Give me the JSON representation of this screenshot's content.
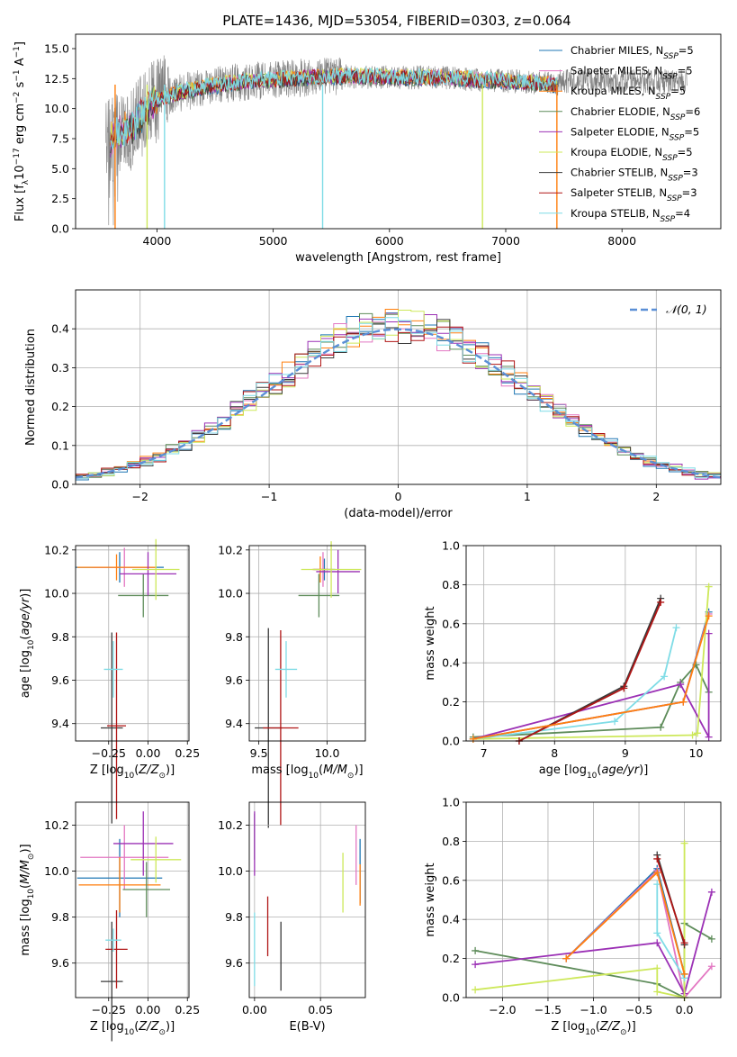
{
  "figure": {
    "title": "PLATE=1436, MJD=53054, FIBERID=0303, z=0.064"
  },
  "chart_data": [
    {
      "id": "spectrum",
      "type": "line",
      "xlabel": "wavelength [Angstrom, rest frame]",
      "ylabel": "Flux [f_λ 10^-17 erg cm^-2 s^-1 A^-1]",
      "xlim": [
        3300,
        8850
      ],
      "ylim": [
        0,
        16.2
      ],
      "xticks": [
        4000,
        5000,
        6000,
        7000,
        8000
      ],
      "yticks": [
        0.0,
        2.5,
        5.0,
        7.5,
        10.0,
        12.5,
        15.0
      ],
      "legend": {
        "placement": "top-right",
        "entries": [
          {
            "name": "Chabrier MILES, N_SSP=5",
            "color": "#1f77b4"
          },
          {
            "name": "Salpeter MILES, N_SSP=5",
            "color": "#e377c2"
          },
          {
            "name": "Kroupa MILES, N_SSP=5",
            "color": "#ff7f0e"
          },
          {
            "name": "Chabrier ELODIE, N_SSP=6",
            "color": "#5e8c5a"
          },
          {
            "name": "Salpeter ELODIE, N_SSP=5",
            "color": "#9b30b5"
          },
          {
            "name": "Kroupa ELODIE, N_SSP=5",
            "color": "#cde85a"
          },
          {
            "name": "Chabrier STELIB, N_SSP=3",
            "color": "#3a3a3a"
          },
          {
            "name": "Salpeter STELIB, N_SSP=3",
            "color": "#b01515"
          },
          {
            "name": "Kroupa STELIB, N_SSP=4",
            "color": "#7fdce6"
          }
        ]
      },
      "data_color": "#808080",
      "model_shape": [
        [
          3600,
          7.4
        ],
        [
          3800,
          8.5
        ],
        [
          3950,
          10.5
        ],
        [
          4150,
          11.2
        ],
        [
          4400,
          11.8
        ],
        [
          4700,
          12.2
        ],
        [
          5000,
          12.4
        ],
        [
          5300,
          12.6
        ],
        [
          5600,
          12.7
        ],
        [
          6000,
          12.6
        ],
        [
          6400,
          12.6
        ],
        [
          6800,
          12.4
        ],
        [
          7200,
          12.2
        ],
        [
          7450,
          12.0
        ]
      ],
      "notes_visible": []
    },
    {
      "id": "residuals",
      "type": "line",
      "xlabel": "(data-model)/error",
      "ylabel": "Normed distribution",
      "xlim": [
        -2.5,
        2.5
      ],
      "ylim": [
        0,
        0.5
      ],
      "xticks": [
        -2,
        -1,
        0,
        1,
        2
      ],
      "yticks": [
        0.0,
        0.1,
        0.2,
        0.3,
        0.4
      ],
      "reference_label": "N(0,1)",
      "reference_color": "#5b8fd6",
      "bin_width": 0.1,
      "legend_placement": "top-right"
    },
    {
      "id": "age-vs-Z",
      "type": "scatter",
      "xlabel": "Z [log10(Z/Z_sun)]",
      "ylabel": "age [log10(age/yr)]",
      "xlim": [
        -0.46,
        0.26
      ],
      "ylim": [
        9.32,
        10.22
      ],
      "xticks": [
        -0.25,
        0.0,
        0.25
      ],
      "yticks": [
        9.4,
        9.6,
        9.8,
        10.0,
        10.2
      ],
      "points": [
        {
          "x": -0.18,
          "y": 10.12,
          "xerr": 0.28,
          "yerr": 0.07,
          "color": "#1f77b4"
        },
        {
          "x": -0.15,
          "y": 10.12,
          "xerr": 0.2,
          "yerr": 0.09,
          "color": "#e377c2"
        },
        {
          "x": -0.2,
          "y": 10.12,
          "xerr": 0.25,
          "yerr": 0.06,
          "color": "#ff7f0e"
        },
        {
          "x": -0.03,
          "y": 9.99,
          "xerr": 0.16,
          "yerr": 0.1,
          "color": "#5e8c5a"
        },
        {
          "x": 0.0,
          "y": 10.09,
          "xerr": 0.18,
          "yerr": 0.1,
          "color": "#9b30b5"
        },
        {
          "x": 0.05,
          "y": 10.11,
          "xerr": 0.15,
          "yerr": 0.14,
          "color": "#cde85a"
        },
        {
          "x": -0.23,
          "y": 9.38,
          "xerr": 0.07,
          "yerr": 0.44,
          "color": "#3a3a3a"
        },
        {
          "x": -0.2,
          "y": 9.39,
          "xerr": 0.06,
          "yerr": 0.43,
          "color": "#b01515"
        },
        {
          "x": -0.22,
          "y": 9.65,
          "xerr": 0.06,
          "yerr": 0.13,
          "color": "#7fdce6"
        }
      ]
    },
    {
      "id": "age-vs-mass",
      "type": "scatter",
      "xlabel": "mass [log10(M/M_sun)]",
      "ylabel": "",
      "xlim": [
        9.43,
        10.28
      ],
      "ylim": [
        9.32,
        10.22
      ],
      "xticks": [
        9.5,
        10.0
      ],
      "yticks": [
        9.4,
        9.6,
        9.8,
        10.0,
        10.2
      ],
      "points": [
        {
          "x": 9.98,
          "y": 10.11,
          "xerr": 0.08,
          "yerr": 0.05,
          "color": "#1f77b4"
        },
        {
          "x": 9.97,
          "y": 10.11,
          "xerr": 0.07,
          "yerr": 0.08,
          "color": "#e377c2"
        },
        {
          "x": 9.95,
          "y": 10.11,
          "xerr": 0.06,
          "yerr": 0.06,
          "color": "#ff7f0e"
        },
        {
          "x": 9.94,
          "y": 9.99,
          "xerr": 0.15,
          "yerr": 0.1,
          "color": "#5e8c5a"
        },
        {
          "x": 10.08,
          "y": 10.1,
          "xerr": 0.16,
          "yerr": 0.1,
          "color": "#9b30b5"
        },
        {
          "x": 10.03,
          "y": 10.11,
          "xerr": 0.22,
          "yerr": 0.13,
          "color": "#cde85a"
        },
        {
          "x": 9.57,
          "y": 9.38,
          "xerr": 0.1,
          "yerr": 0.46,
          "color": "#3a3a3a"
        },
        {
          "x": 9.66,
          "y": 9.38,
          "xerr": 0.13,
          "yerr": 0.45,
          "color": "#b01515"
        },
        {
          "x": 9.7,
          "y": 9.65,
          "xerr": 0.08,
          "yerr": 0.13,
          "color": "#7fdce6"
        }
      ]
    },
    {
      "id": "weight-vs-age",
      "type": "line",
      "xlabel": "age [log10(age/yr)]",
      "ylabel": "mass weight",
      "xlim": [
        6.75,
        10.35
      ],
      "ylim": [
        0,
        1
      ],
      "xticks": [
        7,
        8,
        9,
        10
      ],
      "yticks": [
        0.0,
        0.2,
        0.4,
        0.6,
        0.8,
        1.0
      ],
      "series": [
        {
          "color": "#1f77b4",
          "x": [
            6.85,
            9.82,
            10.18
          ],
          "y": [
            0.01,
            0.2,
            0.66
          ]
        },
        {
          "color": "#e377c2",
          "x": [
            6.85,
            9.82,
            10.18
          ],
          "y": [
            0.01,
            0.2,
            0.65
          ]
        },
        {
          "color": "#5e8c5a",
          "x": [
            6.85,
            9.5,
            9.78,
            10.0,
            10.18
          ],
          "y": [
            0.02,
            0.07,
            0.3,
            0.39,
            0.25
          ]
        },
        {
          "color": "#9b30b5",
          "x": [
            6.85,
            9.78,
            10.18,
            10.18
          ],
          "y": [
            0.01,
            0.29,
            0.02,
            0.55
          ]
        },
        {
          "color": "#cde85a",
          "x": [
            6.85,
            9.95,
            10.02,
            10.18
          ],
          "y": [
            0.01,
            0.03,
            0.04,
            0.79
          ]
        },
        {
          "color": "#7fdce6",
          "x": [
            6.85,
            8.85,
            9.55,
            9.72
          ],
          "y": [
            0.01,
            0.1,
            0.33,
            0.58
          ]
        },
        {
          "color": "#3a3a3a",
          "x": [
            7.5,
            8.98,
            9.5
          ],
          "y": [
            0.0,
            0.28,
            0.73
          ]
        },
        {
          "color": "#b01515",
          "x": [
            7.5,
            8.98,
            9.5
          ],
          "y": [
            0.0,
            0.27,
            0.71
          ]
        },
        {
          "color": "#ff7f0e",
          "x": [
            6.85,
            9.82,
            10.18
          ],
          "y": [
            0.01,
            0.2,
            0.64
          ]
        }
      ]
    },
    {
      "id": "mass-vs-Z",
      "type": "scatter",
      "xlabel": "Z [log10(Z/Z_sun)]",
      "ylabel": "mass [log10(M/M_sun)]",
      "xlim": [
        -0.46,
        0.26
      ],
      "ylim": [
        9.45,
        10.3
      ],
      "xticks": [
        -0.25,
        0.0,
        0.25
      ],
      "yticks": [
        9.6,
        9.8,
        10.0,
        10.2
      ],
      "points": [
        {
          "x": -0.18,
          "y": 9.97,
          "xerr": 0.27,
          "yerr": 0.17,
          "color": "#1f77b4"
        },
        {
          "x": -0.15,
          "y": 10.06,
          "xerr": 0.28,
          "yerr": 0.14,
          "color": "#e377c2"
        },
        {
          "x": -0.18,
          "y": 9.94,
          "xerr": 0.26,
          "yerr": 0.12,
          "color": "#ff7f0e"
        },
        {
          "x": -0.01,
          "y": 9.92,
          "xerr": 0.15,
          "yerr": 0.12,
          "color": "#5e8c5a"
        },
        {
          "x": -0.03,
          "y": 10.12,
          "xerr": 0.19,
          "yerr": 0.14,
          "color": "#9b30b5"
        },
        {
          "x": 0.05,
          "y": 10.05,
          "xerr": 0.16,
          "yerr": 0.1,
          "color": "#cde85a"
        },
        {
          "x": -0.23,
          "y": 9.52,
          "xerr": 0.07,
          "yerr": 0.26,
          "color": "#3a3a3a"
        },
        {
          "x": -0.2,
          "y": 9.66,
          "xerr": 0.07,
          "yerr": 0.17,
          "color": "#b01515"
        },
        {
          "x": -0.22,
          "y": 9.7,
          "xerr": 0.05,
          "yerr": 0.05,
          "color": "#7fdce6"
        }
      ]
    },
    {
      "id": "mass-vs-ebv",
      "type": "scatter",
      "xlabel": "E(B-V)",
      "ylabel": "",
      "xlim": [
        -0.004,
        0.084
      ],
      "ylim": [
        9.45,
        10.3
      ],
      "xticks": [
        0.0,
        0.05
      ],
      "yticks": [
        9.6,
        9.8,
        10.0,
        10.2
      ],
      "points": [
        {
          "x": 0.08,
          "y": 10.0,
          "yerr": 0.14,
          "color": "#1f77b4"
        },
        {
          "x": 0.077,
          "y": 10.07,
          "yerr": 0.13,
          "color": "#e377c2"
        },
        {
          "x": 0.08,
          "y": 9.94,
          "yerr": 0.09,
          "color": "#ff7f0e"
        },
        {
          "x": 0.0,
          "y": 10.15,
          "yerr": 0.1,
          "color": "#5e8c5a"
        },
        {
          "x": 0.0,
          "y": 10.12,
          "yerr": 0.14,
          "color": "#9b30b5"
        },
        {
          "x": 0.067,
          "y": 9.95,
          "yerr": 0.13,
          "color": "#cde85a"
        },
        {
          "x": 0.02,
          "y": 9.63,
          "yerr": 0.15,
          "color": "#3a3a3a"
        },
        {
          "x": 0.01,
          "y": 9.76,
          "yerr": 0.13,
          "color": "#b01515"
        },
        {
          "x": 0.0,
          "y": 9.66,
          "yerr": 0.16,
          "color": "#7fdce6"
        }
      ]
    },
    {
      "id": "weight-vs-Z",
      "type": "line",
      "xlabel": "Z [log10(Z/Z_sun)]",
      "ylabel": "mass weight",
      "xlim": [
        -2.4,
        0.4
      ],
      "ylim": [
        0,
        1
      ],
      "xticks": [
        -2.0,
        -1.5,
        -1.0,
        -0.5,
        0.0
      ],
      "yticks": [
        0.0,
        0.2,
        0.4,
        0.6,
        0.8,
        1.0
      ],
      "series": [
        {
          "color": "#1f77b4",
          "x": [
            -1.3,
            -0.3,
            0.0
          ],
          "y": [
            0.2,
            0.66,
            0.12
          ]
        },
        {
          "color": "#e377c2",
          "x": [
            -1.3,
            -0.3,
            0.0,
            0.3
          ],
          "y": [
            0.2,
            0.65,
            0.0,
            0.16
          ]
        },
        {
          "color": "#5e8c5a",
          "x": [
            -2.3,
            -0.3,
            0.0,
            0.0,
            0.3
          ],
          "y": [
            0.24,
            0.07,
            0.0,
            0.38,
            0.3
          ]
        },
        {
          "color": "#9b30b5",
          "x": [
            -2.3,
            -0.3,
            0.0,
            0.3
          ],
          "y": [
            0.17,
            0.28,
            0.02,
            0.54
          ]
        },
        {
          "color": "#cde85a",
          "x": [
            -2.3,
            -0.3,
            -0.3,
            0.0,
            0.0
          ],
          "y": [
            0.04,
            0.15,
            0.03,
            0.0,
            0.79
          ]
        },
        {
          "color": "#7fdce6",
          "x": [
            -0.3,
            -0.3,
            0.0
          ],
          "y": [
            0.58,
            0.33,
            0.1
          ]
        },
        {
          "color": "#3a3a3a",
          "x": [
            -0.3,
            0.0
          ],
          "y": [
            0.73,
            0.27
          ]
        },
        {
          "color": "#b01515",
          "x": [
            -0.3,
            0.0
          ],
          "y": [
            0.71,
            0.28
          ]
        },
        {
          "color": "#ff7f0e",
          "x": [
            -1.3,
            -0.3,
            0.0
          ],
          "y": [
            0.2,
            0.64,
            0.12
          ]
        }
      ]
    }
  ]
}
